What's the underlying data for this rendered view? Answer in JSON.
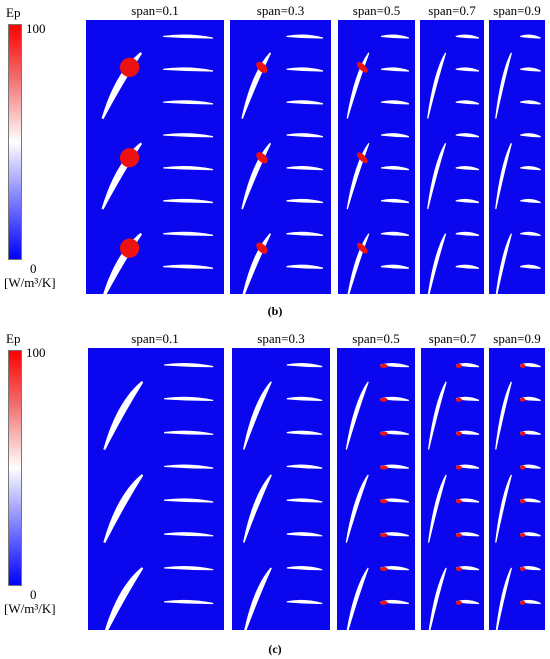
{
  "panels": [
    {
      "caption": "(b)",
      "colorbar": {
        "title": "Ep",
        "max": "100",
        "min": "0",
        "unit": "[W/m³/K]"
      },
      "spans": [
        "span=0.1",
        "span=0.3",
        "span=0.5",
        "span=0.7",
        "span=0.9"
      ]
    },
    {
      "caption": "(c)",
      "colorbar": {
        "title": "Ep",
        "max": "100",
        "min": "0",
        "unit": "[W/m³/K]"
      },
      "spans": [
        "span=0.1",
        "span=0.3",
        "span=0.5",
        "span=0.7",
        "span=0.9"
      ]
    }
  ],
  "colors": {
    "background_field": "#0a07ee",
    "hot": "#ff0000",
    "blade": "#ffffff"
  }
}
